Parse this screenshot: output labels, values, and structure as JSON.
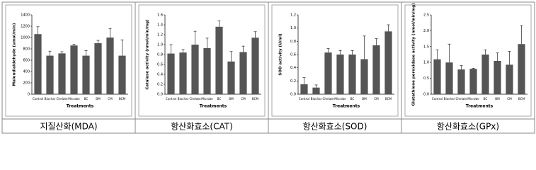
{
  "chart_data": [
    {
      "type": "bar",
      "caption": "지질산화(MDA)",
      "ylabel": "Malondialdehyde (umol/min)",
      "xlabel": "Treatments",
      "categories": [
        "Control",
        "Biochar",
        "Chelate",
        "Microbe",
        "BC",
        "BM",
        "CM",
        "BCM"
      ],
      "values": [
        1060,
        680,
        720,
        860,
        680,
        900,
        1000,
        680
      ],
      "errors": [
        130,
        80,
        30,
        20,
        90,
        50,
        160,
        280
      ],
      "color": "#555555",
      "ylim": [
        0,
        1400
      ],
      "yticks": [
        0,
        200,
        400,
        600,
        800,
        1000,
        1200,
        1400
      ]
    },
    {
      "type": "bar",
      "caption": "항산화효소(CAT)",
      "ylabel": "Catalase activity (nmol/min/mg)",
      "xlabel": "Treatments",
      "categories": [
        "Control",
        "Biochar",
        "Chelate",
        "Microbe",
        "BC",
        "BM",
        "CM",
        "BCM"
      ],
      "values": [
        0.82,
        0.84,
        1.0,
        0.93,
        1.36,
        0.66,
        0.85,
        1.14
      ],
      "errors": [
        0.18,
        0.06,
        0.27,
        0.2,
        0.12,
        0.2,
        0.12,
        0.12
      ],
      "color": "#555555",
      "ylim": [
        0,
        1.6
      ],
      "yticks": [
        {
          "value": 0,
          "label": "0.0"
        },
        0.2,
        0.4,
        0.6,
        0.8,
        {
          "value": 1,
          "label": "1.0"
        },
        1.2,
        1.4,
        1.6
      ]
    },
    {
      "type": "bar",
      "caption": "항산화효소(SOD)",
      "ylabel": "SOD activity (U/ml)",
      "xlabel": "Treatments",
      "categories": [
        "Control",
        "Biochar",
        "Chelate",
        "Microbe",
        "BC",
        "BM",
        "CM",
        "BCM"
      ],
      "values": [
        0.15,
        0.1,
        0.63,
        0.6,
        0.6,
        0.53,
        0.74,
        0.95
      ],
      "errors": [
        0.1,
        0.04,
        0.06,
        0.06,
        0.06,
        0.35,
        0.1,
        0.1
      ],
      "color": "#555555",
      "ylim": [
        0,
        1.2
      ],
      "yticks": [
        {
          "value": 0,
          "label": "0.0"
        },
        0.2,
        0.4,
        0.6,
        0.8,
        {
          "value": 1,
          "label": "1.0"
        },
        1.2
      ]
    },
    {
      "type": "bar",
      "caption": "항산화효소(GPx)",
      "ylabel": "Glutathione peroxidase activity (nmol/min/mg)",
      "xlabel": "Treatments",
      "categories": [
        "Control",
        "Biochar",
        "Chelate",
        "Microbe",
        "BC",
        "BM",
        "CM",
        "BCM"
      ],
      "values": [
        1.1,
        1.0,
        0.78,
        0.8,
        1.25,
        1.05,
        0.93,
        1.58
      ],
      "errors": [
        0.3,
        0.58,
        0.12,
        0.02,
        0.15,
        0.25,
        0.42,
        0.58
      ],
      "color": "#555555",
      "ylim": [
        0,
        2.5
      ],
      "yticks": [
        {
          "value": 0,
          "label": "0.0"
        },
        0.5,
        {
          "value": 1,
          "label": "1.0"
        },
        1.5,
        {
          "value": 2,
          "label": "2.0"
        },
        2.5
      ]
    }
  ]
}
